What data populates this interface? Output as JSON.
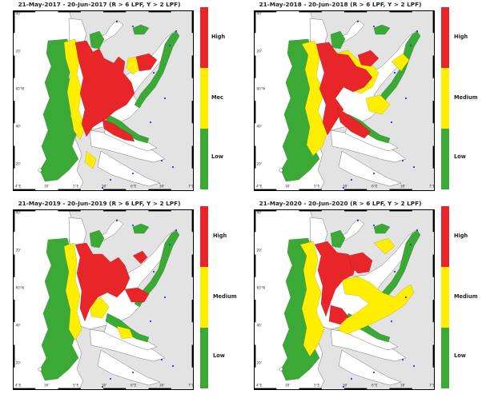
{
  "panels": [
    {
      "title": "21-May-2017  - 20-Jun-2017  (R > 6 LPF, Y > 2 LPF)",
      "legend": {
        "high": "High",
        "medium": "Mec",
        "low": "Low"
      }
    },
    {
      "title": "21-May-2018  - 20-Jun-2018  (R > 6 LPF, Y > 2 LPF)",
      "legend": {
        "high": "High",
        "medium": "Medium",
        "low": "Low"
      }
    },
    {
      "title": "21-May-2019  - 20-Jun-2019  (R > 6 LPF, Y > 2 LPF)",
      "legend": {
        "high": "High",
        "medium": "Medium",
        "low": "Low"
      }
    },
    {
      "title": "21-May-2020  - 20-Jun-2020  (R > 6 LPF, Y > 2 LPF)",
      "legend": {
        "high": "High",
        "medium": "Medium",
        "low": "Low"
      }
    }
  ],
  "axes": {
    "lat_ticks": [
      "40'",
      "20'",
      "60°N",
      "40'",
      "20'"
    ],
    "lon_ticks": [
      "4°E",
      "30'",
      "5°E",
      "30'",
      "6°E",
      "30'",
      "7°E"
    ]
  },
  "colors": {
    "high": "#e8262a",
    "medium": "#ffee00",
    "low": "#3aa935",
    "land": "#e3e3e3",
    "sea": "#ffffff",
    "coast": "#444444",
    "marker": "#2a3bd4"
  },
  "icons": {
    "marker": "blue-dot-icon"
  }
}
